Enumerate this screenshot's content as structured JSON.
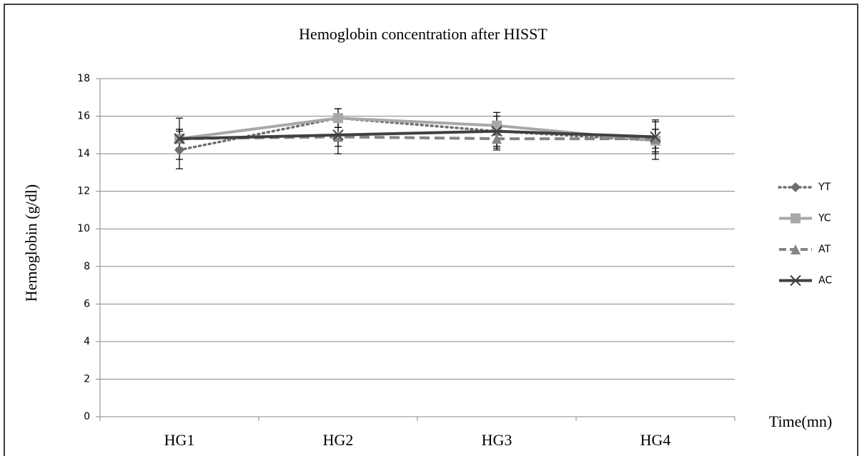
{
  "chart_data": {
    "type": "line",
    "title": "Hemoglobin concentration after HISST",
    "y_label": "Hemoglobin (g/dl)",
    "x_label": "Time(mn)",
    "categories": [
      "HG1",
      "HG2",
      "HG3",
      "HG4"
    ],
    "series": [
      {
        "name": "YT",
        "color": "#6e6e6e",
        "dash": "dotted",
        "marker": "diamond",
        "values": [
          14.2,
          15.9,
          15.2,
          14.7
        ],
        "errors": [
          1.0,
          0.5,
          0.8,
          1.0
        ]
      },
      {
        "name": "YC",
        "color": "#a8a8a8",
        "dash": "solid",
        "marker": "square",
        "values": [
          14.8,
          15.9,
          15.5,
          14.7
        ],
        "errors": [
          0.5,
          0.5,
          0.5,
          0.6
        ]
      },
      {
        "name": "AT",
        "color": "#858585",
        "dash": "dashed",
        "marker": "triangle",
        "values": [
          14.8,
          14.9,
          14.8,
          14.8
        ],
        "errors": [
          0.5,
          0.5,
          0.5,
          0.5
        ]
      },
      {
        "name": "AC",
        "color": "#404040",
        "dash": "solid",
        "marker": "x",
        "values": [
          14.8,
          15.0,
          15.2,
          14.9
        ],
        "errors": [
          1.1,
          1.0,
          1.0,
          0.9
        ]
      }
    ],
    "ylim": [
      0,
      18
    ],
    "yticks": [
      0,
      2,
      4,
      6,
      8,
      10,
      12,
      14,
      16,
      18
    ],
    "grid": true,
    "legend": "right"
  }
}
